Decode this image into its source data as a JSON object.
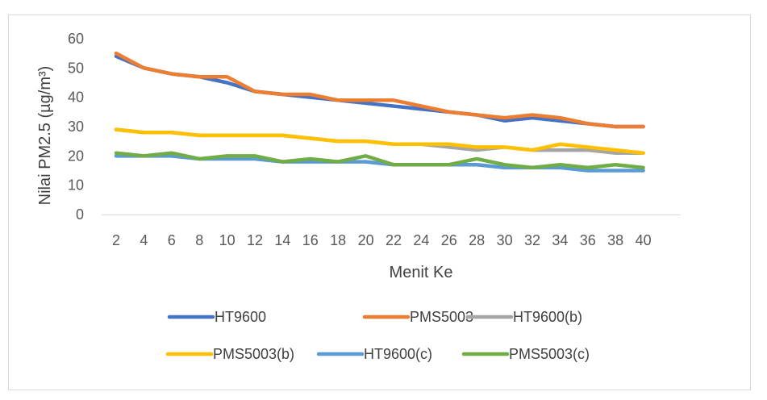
{
  "chart_data": {
    "type": "line",
    "title": "",
    "xlabel": "Menit Ke",
    "ylabel": "Nilai PM2.5 (µg/m³)",
    "categories": [
      "2",
      "4",
      "6",
      "8",
      "10",
      "12",
      "14",
      "16",
      "18",
      "20",
      "22",
      "24",
      "26",
      "28",
      "30",
      "32",
      "34",
      "36",
      "38",
      "40"
    ],
    "ylim": [
      0,
      60
    ],
    "yticks": [
      0,
      10,
      20,
      30,
      40,
      50,
      60
    ],
    "grid": false,
    "legend_position": "bottom",
    "series": [
      {
        "name": "HT9600",
        "color": "#4472c4",
        "values": [
          54,
          50,
          48,
          47,
          45,
          42,
          41,
          40,
          39,
          38,
          37,
          36,
          35,
          34,
          32,
          33,
          32,
          31,
          30,
          30
        ]
      },
      {
        "name": "PMS5003",
        "color": "#ed7d31",
        "values": [
          55,
          50,
          48,
          47,
          47,
          42,
          41,
          41,
          39,
          39,
          39,
          37,
          35,
          34,
          33,
          34,
          33,
          31,
          30,
          30
        ]
      },
      {
        "name": "HT9600(b)",
        "color": "#a5a5a5",
        "values": [
          29,
          28,
          28,
          27,
          27,
          27,
          27,
          26,
          25,
          25,
          24,
          24,
          23,
          22,
          23,
          22,
          22,
          22,
          21,
          21
        ]
      },
      {
        "name": "PMS5003(b)",
        "color": "#ffc000",
        "values": [
          29,
          28,
          28,
          27,
          27,
          27,
          27,
          26,
          25,
          25,
          24,
          24,
          24,
          23,
          23,
          22,
          24,
          23,
          22,
          21
        ]
      },
      {
        "name": "HT9600(c)",
        "color": "#5b9bd5",
        "values": [
          20,
          20,
          20,
          19,
          19,
          19,
          18,
          18,
          18,
          18,
          17,
          17,
          17,
          17,
          16,
          16,
          16,
          15,
          15,
          15
        ]
      },
      {
        "name": "PMS5003(c)",
        "color": "#70ad47",
        "values": [
          21,
          20,
          21,
          19,
          20,
          20,
          18,
          19,
          18,
          20,
          17,
          17,
          17,
          19,
          17,
          16,
          17,
          16,
          17,
          16
        ]
      }
    ]
  }
}
